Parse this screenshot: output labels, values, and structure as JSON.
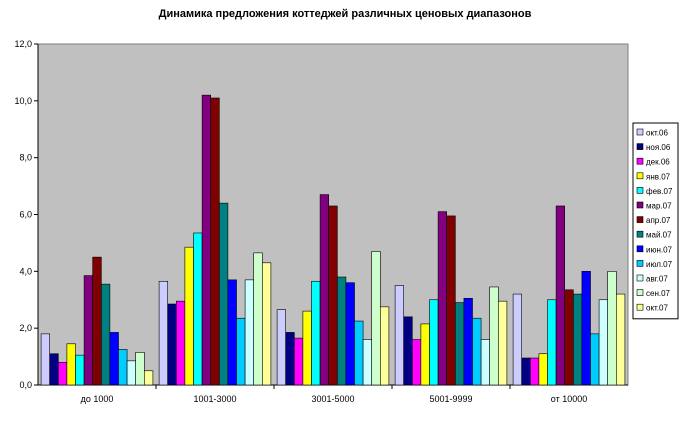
{
  "chart_data": {
    "type": "bar",
    "title": "Динамика предложения коттеджей различных ценовых диапазонов",
    "xlabel": "",
    "ylabel": "",
    "ylim": [
      0,
      12
    ],
    "yticks": [
      "0,0",
      "2,0",
      "4,0",
      "6,0",
      "8,0",
      "10,0",
      "12,0"
    ],
    "grid": false,
    "legend_position": "right",
    "plot_background": "#c0c0c0",
    "categories": [
      "до 1000",
      "1001-3000",
      "3001-5000",
      "5001-9999",
      "от 10000"
    ],
    "series": [
      {
        "name": "окт.06",
        "color": "#ccccff",
        "values": [
          1.8,
          3.65,
          2.65,
          3.5,
          3.2
        ]
      },
      {
        "name": "ноя.06",
        "color": "#000080",
        "values": [
          1.1,
          2.85,
          1.85,
          2.4,
          0.95
        ]
      },
      {
        "name": "дек.06",
        "color": "#ff00ff",
        "values": [
          0.8,
          2.95,
          1.65,
          1.6,
          0.95
        ]
      },
      {
        "name": "янв.07",
        "color": "#ffff00",
        "values": [
          1.45,
          4.85,
          2.6,
          2.15,
          1.1
        ]
      },
      {
        "name": "фев.07",
        "color": "#00ffff",
        "values": [
          1.05,
          5.35,
          3.65,
          3.0,
          3.0
        ]
      },
      {
        "name": "мар.07",
        "color": "#800080",
        "values": [
          3.85,
          10.2,
          6.7,
          6.1,
          6.3
        ]
      },
      {
        "name": "апр.07",
        "color": "#800000",
        "values": [
          4.5,
          10.1,
          6.3,
          5.95,
          3.35
        ]
      },
      {
        "name": "май.07",
        "color": "#008080",
        "values": [
          3.55,
          6.4,
          3.8,
          2.9,
          3.2
        ]
      },
      {
        "name": "июн.07",
        "color": "#0000ff",
        "values": [
          1.85,
          3.7,
          3.6,
          3.05,
          4.0
        ]
      },
      {
        "name": "июл.07",
        "color": "#00ccff",
        "values": [
          1.25,
          2.35,
          2.25,
          2.35,
          1.8
        ]
      },
      {
        "name": "авг.07",
        "color": "#ccffff",
        "values": [
          0.85,
          3.7,
          1.6,
          1.6,
          3.0
        ]
      },
      {
        "name": "сен.07",
        "color": "#ccffcc",
        "values": [
          1.15,
          4.65,
          4.7,
          3.45,
          4.0
        ]
      },
      {
        "name": "окт.07",
        "color": "#ffff99",
        "values": [
          0.5,
          4.3,
          2.75,
          2.95,
          3.2
        ]
      }
    ]
  }
}
